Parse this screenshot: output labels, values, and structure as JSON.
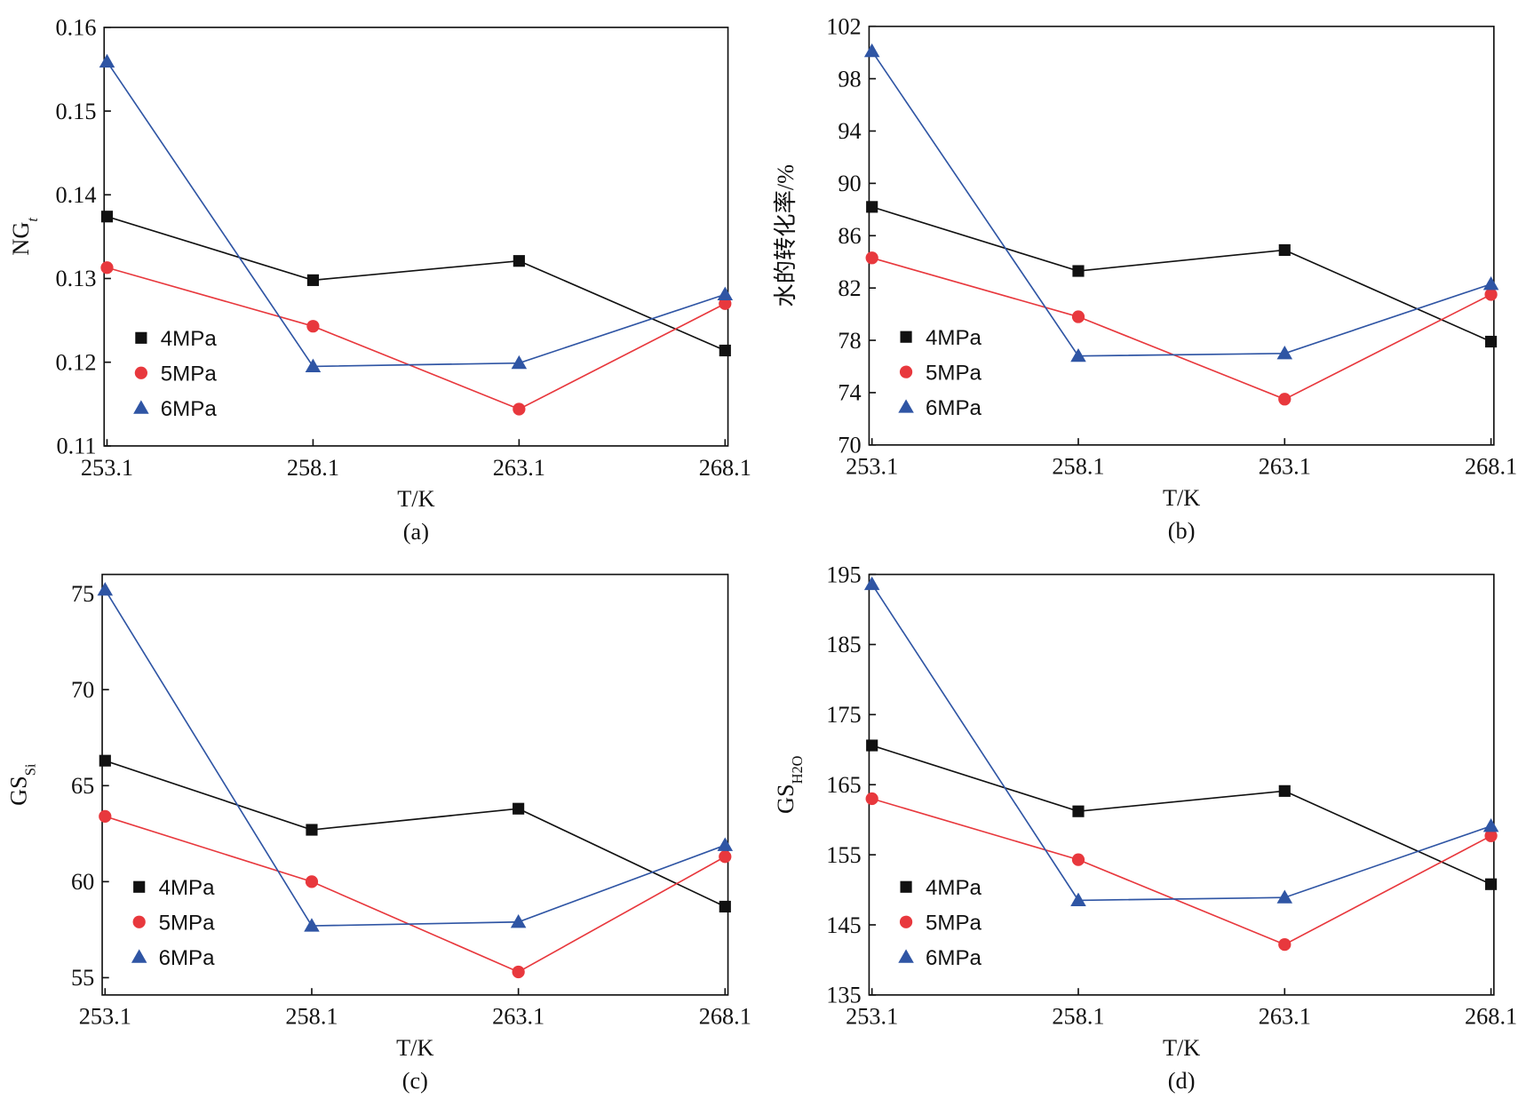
{
  "chart_data": [
    {
      "type": "line",
      "ylabel": "NG",
      "ylabel_sub": "t",
      "xlabel": "T/K",
      "caption": "(a)",
      "x": [
        253.1,
        258.1,
        263.1,
        268.1
      ],
      "xlim": [
        253.03,
        268.17
      ],
      "xticks": [
        253.1,
        258.1,
        263.1,
        268.1
      ],
      "ylim": [
        0.11,
        0.16
      ],
      "yticks": [
        0.11,
        0.12,
        0.13,
        0.14,
        0.15,
        0.16
      ],
      "legend": "lower left",
      "series": [
        {
          "name": "4MPa",
          "color": "#111111",
          "marker": "square",
          "values": [
            0.1374,
            0.1298,
            0.1321,
            0.1214
          ]
        },
        {
          "name": "5MPa",
          "color": "#e8383d",
          "marker": "circle",
          "values": [
            0.1313,
            0.1243,
            0.1144,
            0.127
          ]
        },
        {
          "name": "6MPa",
          "color": "#2f55a4",
          "marker": "triangle",
          "values": [
            0.1559,
            0.1195,
            0.1199,
            0.1281
          ]
        }
      ]
    },
    {
      "type": "line",
      "ylabel": "水的转化率/%",
      "xlabel": "T/K",
      "caption": "(b)",
      "x": [
        253.1,
        258.1,
        263.1,
        268.1
      ],
      "xlim": [
        253.03,
        268.17
      ],
      "xticks": [
        253.1,
        258.1,
        263.1,
        268.1
      ],
      "ylim": [
        70,
        102
      ],
      "yticks": [
        70,
        74,
        78,
        82,
        86,
        90,
        94,
        98,
        102
      ],
      "legend": "lower left",
      "series": [
        {
          "name": "4MPa",
          "color": "#111111",
          "marker": "square",
          "values": [
            88.2,
            83.3,
            84.9,
            77.9
          ]
        },
        {
          "name": "5MPa",
          "color": "#e8383d",
          "marker": "circle",
          "values": [
            84.3,
            79.8,
            73.5,
            81.5
          ]
        },
        {
          "name": "6MPa",
          "color": "#2f55a4",
          "marker": "triangle",
          "values": [
            100.1,
            76.8,
            77.0,
            82.3
          ]
        }
      ]
    },
    {
      "type": "line",
      "ylabel": "GS",
      "ylabel_sub": "Si",
      "xlabel": "T/K",
      "caption": "(c)",
      "x": [
        253.1,
        258.1,
        263.1,
        268.1
      ],
      "xlim": [
        253.03,
        268.17
      ],
      "xticks": [
        253.1,
        258.1,
        263.1,
        268.1
      ],
      "ylim": [
        54.1,
        76.0
      ],
      "yticks": [
        55,
        60,
        65,
        70,
        75
      ],
      "legend": "lower left",
      "series": [
        {
          "name": "4MPa",
          "color": "#111111",
          "marker": "square",
          "values": [
            66.3,
            62.7,
            63.8,
            58.7
          ]
        },
        {
          "name": "5MPa",
          "color": "#e8383d",
          "marker": "circle",
          "values": [
            63.4,
            60.0,
            55.3,
            61.3
          ]
        },
        {
          "name": "6MPa",
          "color": "#2f55a4",
          "marker": "triangle",
          "values": [
            75.2,
            57.7,
            57.9,
            61.9
          ]
        }
      ]
    },
    {
      "type": "line",
      "ylabel": "GS",
      "ylabel_sub": "H2O",
      "xlabel": "T/K",
      "caption": "(d)",
      "x": [
        253.1,
        258.1,
        263.1,
        268.1
      ],
      "xlim": [
        253.03,
        268.17
      ],
      "xticks": [
        253.1,
        258.1,
        263.1,
        268.1
      ],
      "ylim": [
        135,
        195
      ],
      "yticks": [
        135,
        145,
        155,
        165,
        175,
        185,
        195
      ],
      "legend": "lower left",
      "series": [
        {
          "name": "4MPa",
          "color": "#111111",
          "marker": "square",
          "values": [
            170.6,
            161.2,
            164.1,
            150.8
          ]
        },
        {
          "name": "5MPa",
          "color": "#e8383d",
          "marker": "circle",
          "values": [
            163.0,
            154.3,
            142.2,
            157.7
          ]
        },
        {
          "name": "6MPa",
          "color": "#2f55a4",
          "marker": "triangle",
          "values": [
            193.6,
            148.5,
            148.9,
            159.1
          ]
        }
      ]
    }
  ]
}
